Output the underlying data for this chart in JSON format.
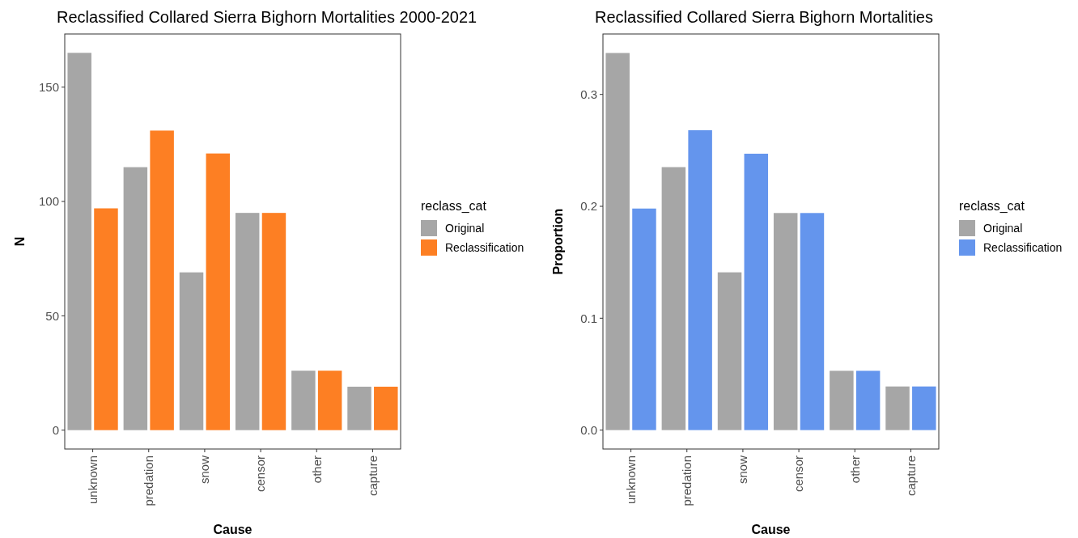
{
  "chart_data": [
    {
      "type": "bar",
      "title": "Reclassified Collared Sierra Bighorn Mortalities 2000-2021",
      "xlabel": "Cause",
      "ylabel": "N",
      "legend_title": "reclass_cat",
      "legend": "right",
      "categories": [
        "unknown",
        "predation",
        "snow",
        "censor",
        "other",
        "capture"
      ],
      "series": [
        {
          "name": "Original",
          "color": "#a6a6a6",
          "values": [
            165,
            115,
            69,
            95,
            26,
            19
          ]
        },
        {
          "name": "Reclassification",
          "color": "#fd7f23",
          "values": [
            97,
            131,
            121,
            95,
            26,
            19
          ]
        }
      ],
      "ylim": [
        -8.25,
        173.25
      ],
      "yticks": [
        0,
        50,
        100,
        150
      ],
      "grid": false
    },
    {
      "type": "bar",
      "title": "Reclassified Collared Sierra Bighorn Mortalities",
      "xlabel": "Cause",
      "ylabel": "Proportion",
      "legend_title": "reclass_cat",
      "legend": "right",
      "categories": [
        "unknown",
        "predation",
        "snow",
        "censor",
        "other",
        "capture"
      ],
      "series": [
        {
          "name": "Original",
          "color": "#a6a6a6",
          "values": [
            0.337,
            0.235,
            0.141,
            0.194,
            0.053,
            0.039
          ]
        },
        {
          "name": "Reclassification",
          "color": "#6495ed",
          "values": [
            0.198,
            0.268,
            0.247,
            0.194,
            0.053,
            0.039
          ]
        }
      ],
      "ylim": [
        -0.0169,
        0.354
      ],
      "yticks": [
        {
          "value": 0,
          "label": "0.0"
        },
        0.1,
        0.2,
        0.3
      ],
      "grid": false
    }
  ]
}
